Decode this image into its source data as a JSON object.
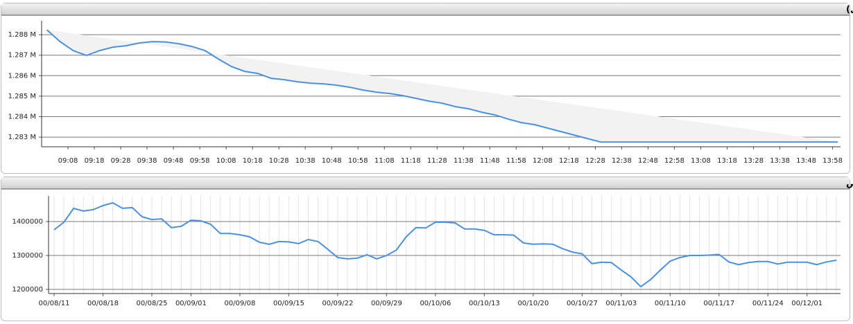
{
  "chart_data": [
    {
      "type": "line",
      "title": "شاخص کل (آخرین روز معاملاتی)",
      "x": [
        540,
        545,
        550,
        555,
        560,
        565,
        570,
        575,
        580,
        585,
        590,
        595,
        600,
        605,
        610,
        615,
        620,
        625,
        630,
        635,
        640,
        645,
        650,
        655,
        660,
        665,
        670,
        675,
        680,
        685,
        690,
        695,
        700,
        705,
        710,
        715,
        720,
        725,
        730,
        735,
        740,
        745,
        750,
        755,
        760,
        765,
        770,
        775,
        780,
        785,
        790,
        795,
        800,
        805,
        810,
        815,
        820,
        825,
        830,
        835,
        840
      ],
      "values": [
        1288236,
        1287662,
        1287223,
        1286987,
        1287223,
        1287392,
        1287460,
        1287595,
        1287662,
        1287645,
        1287561,
        1287426,
        1287223,
        1286818,
        1286446,
        1286210,
        1286108,
        1285872,
        1285804,
        1285703,
        1285635,
        1285602,
        1285534,
        1285433,
        1285298,
        1285196,
        1285129,
        1285027,
        1284892,
        1284757,
        1284656,
        1284487,
        1284385,
        1284216,
        1284081,
        1283879,
        1283710,
        1283609,
        1283440,
        1283271,
        1283102,
        1282933,
        1282764,
        1282764,
        1282764,
        1282764,
        1282764,
        1282764,
        1282764,
        1282764,
        1282764,
        1282764,
        1282764,
        1282764,
        1282764,
        1282764,
        1282764,
        1282764,
        1282764,
        1282764,
        1282764
      ],
      "color": "#4a90e2",
      "xlim": [
        538,
        841
      ],
      "xticks": [
        {
          "value": 548,
          "label": "09:08"
        },
        {
          "value": 558,
          "label": "09:18"
        },
        {
          "value": 568,
          "label": "09:28"
        },
        {
          "value": 578,
          "label": "09:38"
        },
        {
          "value": 588,
          "label": "09:48"
        },
        {
          "value": 598,
          "label": "09:58"
        },
        {
          "value": 608,
          "label": "10:08"
        },
        {
          "value": 618,
          "label": "10:18"
        },
        {
          "value": 628,
          "label": "10:28"
        },
        {
          "value": 638,
          "label": "10:38"
        },
        {
          "value": 648,
          "label": "10:48"
        },
        {
          "value": 658,
          "label": "10:58"
        },
        {
          "value": 668,
          "label": "11:08"
        },
        {
          "value": 678,
          "label": "11:18"
        },
        {
          "value": 688,
          "label": "11:28"
        },
        {
          "value": 698,
          "label": "11:38"
        },
        {
          "value": 708,
          "label": "11:48"
        },
        {
          "value": 718,
          "label": "11:58"
        },
        {
          "value": 728,
          "label": "12:08"
        },
        {
          "value": 738,
          "label": "12:18"
        },
        {
          "value": 748,
          "label": "12:28"
        },
        {
          "value": 758,
          "label": "12:38"
        },
        {
          "value": 768,
          "label": "12:48"
        },
        {
          "value": 778,
          "label": "12:58"
        },
        {
          "value": 788,
          "label": "13:08"
        },
        {
          "value": 798,
          "label": "13:18"
        },
        {
          "value": 808,
          "label": "13:28"
        },
        {
          "value": 818,
          "label": "13:38"
        },
        {
          "value": 828,
          "label": "13:48"
        },
        {
          "value": 838,
          "label": "13:58"
        }
      ],
      "ylim": [
        1282530,
        1288680
      ],
      "yticks": [
        {
          "value": 1283000,
          "label": "1.283 M"
        },
        {
          "value": 1284000,
          "label": "1.284 M"
        },
        {
          "value": 1285000,
          "label": "1.285 M"
        },
        {
          "value": 1286000,
          "label": "1.286 M"
        },
        {
          "value": 1287000,
          "label": "1.287 M"
        },
        {
          "value": 1288000,
          "label": "1.288 M"
        }
      ],
      "grid": true
    },
    {
      "type": "line",
      "title": "نمودار شاخص",
      "categories": [
        "00/08/11",
        null,
        null,
        null,
        null,
        "00/08/18",
        null,
        null,
        null,
        null,
        "00/08/25",
        null,
        null,
        null,
        "00/09/01",
        null,
        null,
        null,
        null,
        "00/09/08",
        null,
        null,
        null,
        null,
        "00/09/15",
        null,
        null,
        null,
        null,
        "00/09/22",
        null,
        null,
        null,
        null,
        "00/09/29",
        null,
        null,
        null,
        null,
        "00/10/06",
        null,
        null,
        null,
        null,
        "00/10/13",
        null,
        null,
        null,
        null,
        "00/10/20",
        null,
        null,
        null,
        null,
        "00/10/27",
        null,
        null,
        null,
        "00/11/03",
        null,
        null,
        null,
        null,
        "00/11/10",
        null,
        null,
        null,
        null,
        "00/11/17",
        null,
        null,
        null,
        null,
        "00/11/24",
        null,
        null,
        null,
        "00/12/01",
        null,
        null,
        null
      ],
      "values": [
        1375500,
        1398000,
        1439000,
        1431000,
        1435000,
        1447000,
        1455000,
        1439000,
        1441000,
        1414000,
        1406000,
        1408000,
        1382000,
        1386000,
        1404000,
        1402000,
        1392000,
        1365000,
        1365000,
        1361000,
        1355000,
        1339000,
        1333000,
        1341000,
        1340000,
        1335000,
        1347000,
        1341000,
        1318000,
        1294000,
        1290000,
        1292000,
        1302000,
        1290000,
        1300000,
        1316000,
        1355000,
        1382000,
        1381000,
        1398000,
        1398000,
        1396000,
        1378000,
        1378000,
        1374000,
        1361000,
        1361000,
        1360000,
        1337000,
        1333000,
        1334000,
        1333000,
        1320000,
        1310000,
        1305000,
        1276000,
        1280000,
        1279000,
        1257000,
        1237000,
        1208000,
        1229000,
        1257000,
        1283000,
        1294000,
        1300000,
        1300000,
        1301000,
        1303000,
        1281000,
        1273000,
        1279000,
        1282000,
        1282000,
        1275000,
        1280000,
        1280000,
        1280000,
        1273000,
        1281000,
        1286000
      ],
      "color": "#4a90e2",
      "ylim": [
        1187800,
        1475500
      ],
      "yticks": [
        1200000,
        1300000,
        1400000
      ],
      "grid": true
    }
  ]
}
